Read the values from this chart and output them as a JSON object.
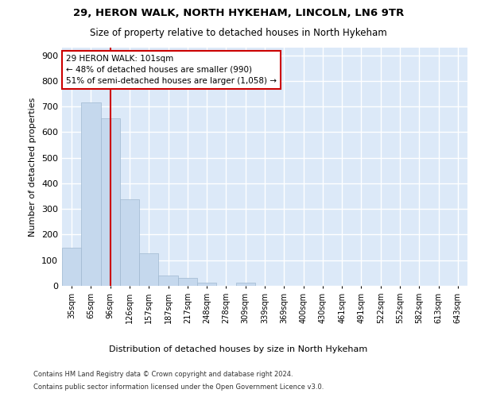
{
  "title1": "29, HERON WALK, NORTH HYKEHAM, LINCOLN, LN6 9TR",
  "title2": "Size of property relative to detached houses in North Hykeham",
  "xlabel": "Distribution of detached houses by size in North Hykeham",
  "ylabel": "Number of detached properties",
  "categories": [
    "35sqm",
    "65sqm",
    "96sqm",
    "126sqm",
    "157sqm",
    "187sqm",
    "217sqm",
    "248sqm",
    "278sqm",
    "309sqm",
    "339sqm",
    "369sqm",
    "400sqm",
    "430sqm",
    "461sqm",
    "491sqm",
    "522sqm",
    "552sqm",
    "582sqm",
    "613sqm",
    "643sqm"
  ],
  "values": [
    150,
    715,
    655,
    338,
    128,
    40,
    30,
    13,
    0,
    13,
    0,
    0,
    0,
    0,
    0,
    0,
    0,
    0,
    0,
    0,
    0
  ],
  "bar_color": "#c5d8ed",
  "bar_edge_color": "#a0b8d0",
  "red_line_x": 2.0,
  "annotation_text": "29 HERON WALK: 101sqm\n← 48% of detached houses are smaller (990)\n51% of semi-detached houses are larger (1,058) →",
  "annotation_box_color": "#ffffff",
  "annotation_edge_color": "#cc0000",
  "ylim": [
    0,
    930
  ],
  "yticks": [
    0,
    100,
    200,
    300,
    400,
    500,
    600,
    700,
    800,
    900
  ],
  "background_color": "#dce9f8",
  "grid_color": "#ffffff",
  "footer_line1": "Contains HM Land Registry data © Crown copyright and database right 2024.",
  "footer_line2": "Contains public sector information licensed under the Open Government Licence v3.0."
}
